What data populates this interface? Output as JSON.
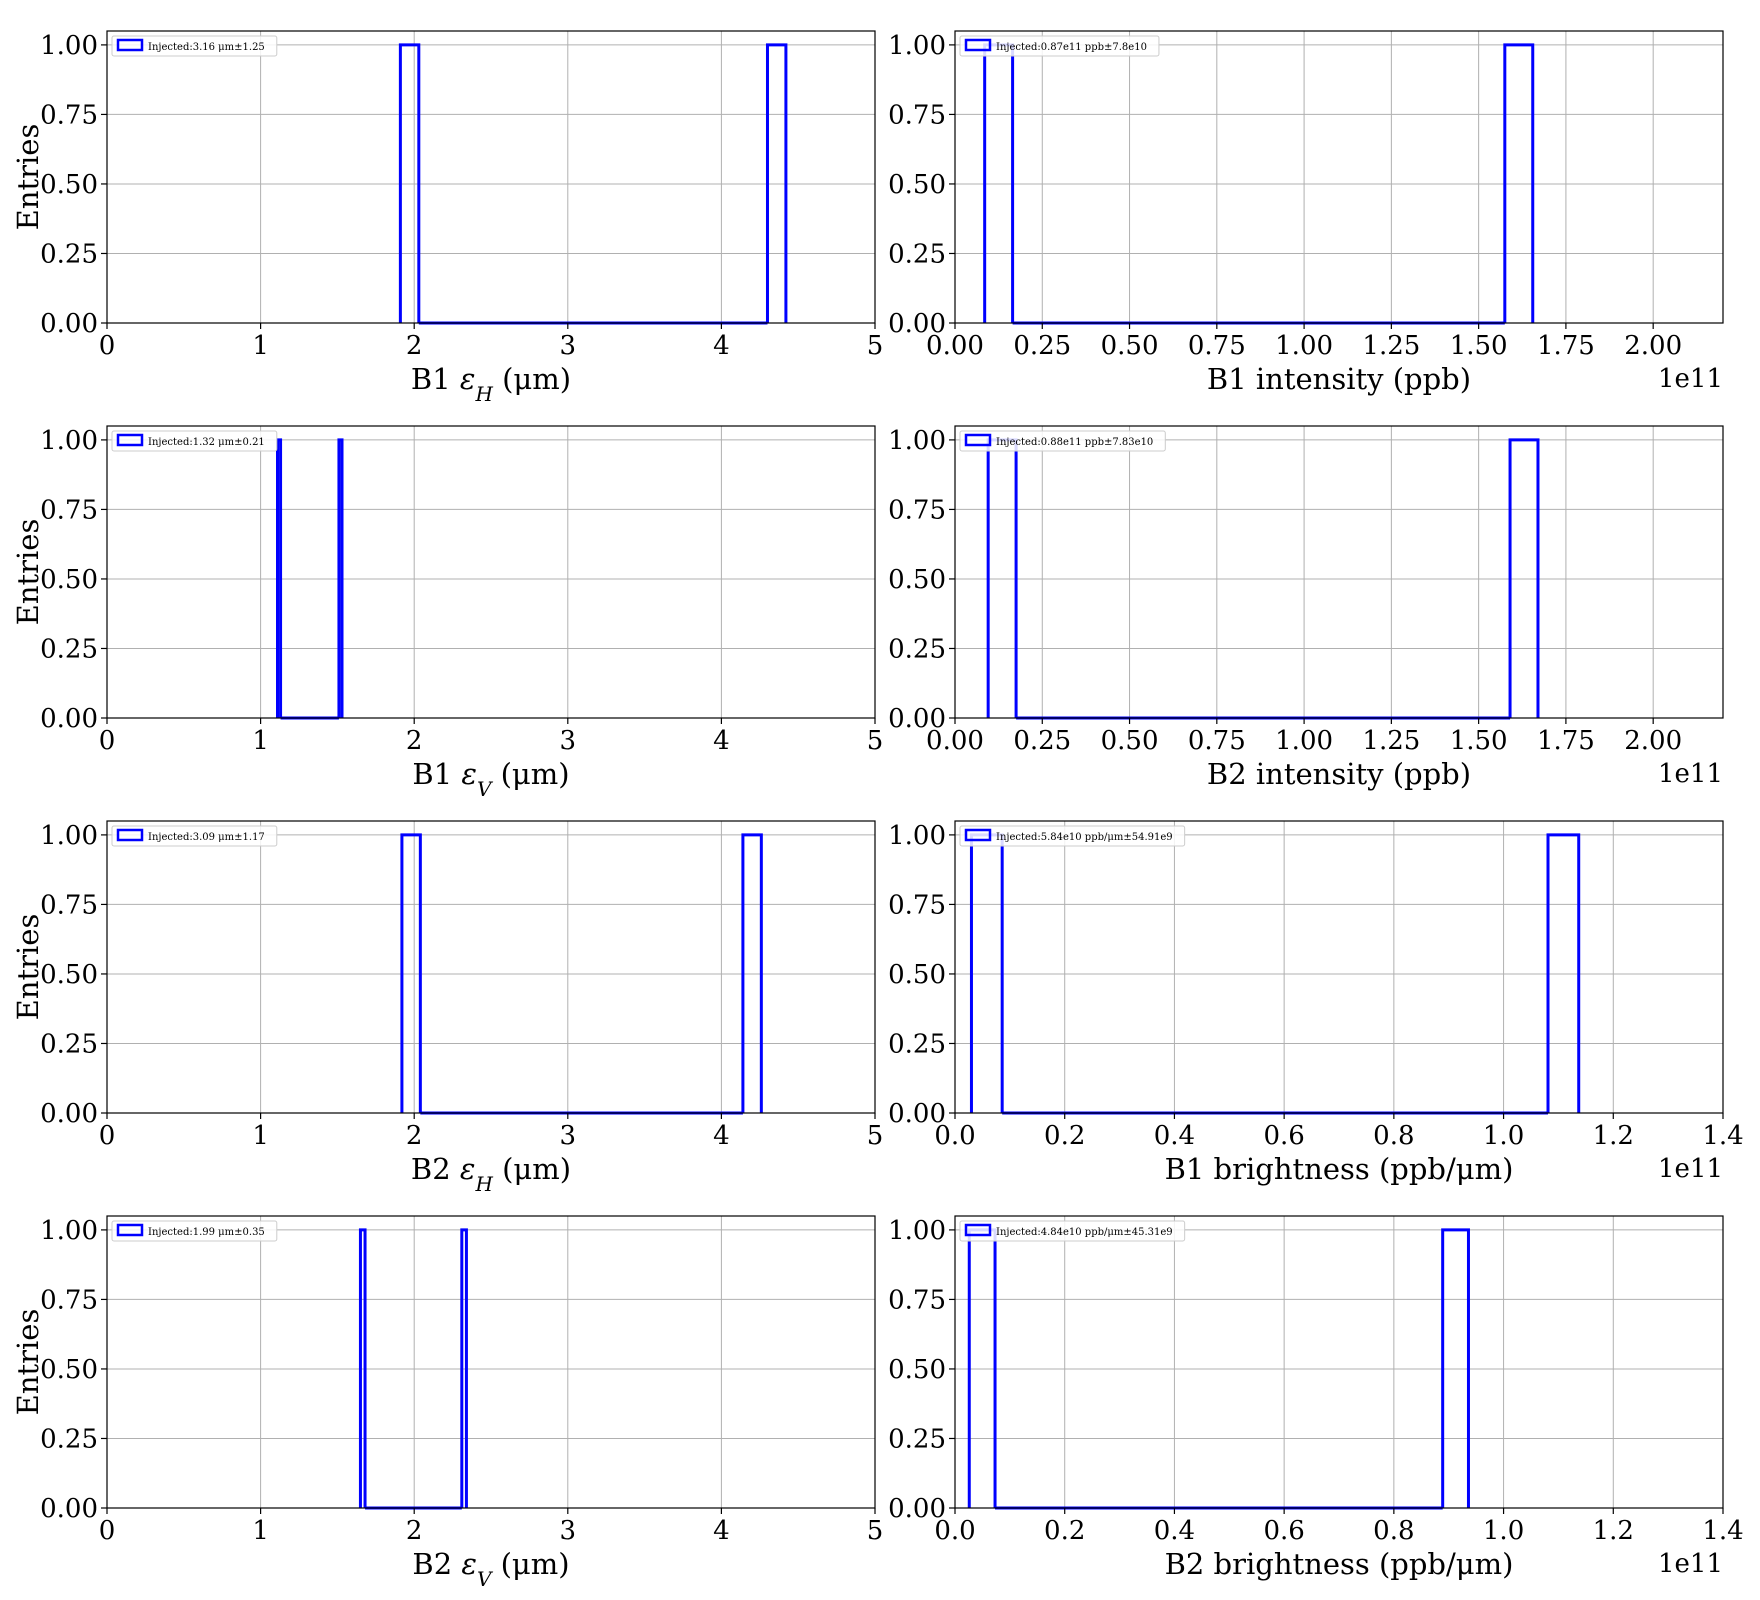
{
  "chart_data": [
    {
      "type": "bar",
      "xlabel": "B1 εH (μm)",
      "ylabel": "Entries",
      "legend": "Injected:3.16 μm±1.25",
      "legend_position": "upper-left",
      "xlim": [
        0,
        5
      ],
      "ylim": [
        0,
        1.05
      ],
      "xticks": [
        "0",
        "1",
        "2",
        "3",
        "4",
        "5"
      ],
      "x_offset": "",
      "grid": true,
      "bins": [
        {
          "x0": 1.91,
          "x1": 2.03,
          "value": 1.0
        },
        {
          "x0": 4.3,
          "x1": 4.42,
          "value": 1.0
        }
      ]
    },
    {
      "type": "bar",
      "xlabel": "B1 intensity (ppb)",
      "ylabel": "",
      "legend": "Injected:0.87e11 ppb±7.8e10",
      "legend_position": "upper-left",
      "xlim": [
        0,
        2.2
      ],
      "ylim": [
        0,
        1.05
      ],
      "xticks": [
        "0.00",
        "0.25",
        "0.50",
        "0.75",
        "1.00",
        "1.25",
        "1.50",
        "1.75",
        "2.00"
      ],
      "x_offset": "1e11",
      "grid": true,
      "bins": [
        {
          "x0": 0.085,
          "x1": 0.165,
          "value": 1.0
        },
        {
          "x0": 1.575,
          "x1": 1.655,
          "value": 1.0
        }
      ]
    },
    {
      "type": "bar",
      "xlabel": "B1 εV (μm)",
      "ylabel": "Entries",
      "legend": "Injected:1.32 μm±0.21",
      "legend_position": "upper-left",
      "xlim": [
        0,
        5
      ],
      "ylim": [
        0,
        1.05
      ],
      "xticks": [
        "0",
        "1",
        "2",
        "3",
        "4",
        "5"
      ],
      "x_offset": "",
      "grid": true,
      "bins": [
        {
          "x0": 1.11,
          "x1": 1.13,
          "value": 1.0
        },
        {
          "x0": 1.51,
          "x1": 1.53,
          "value": 1.0
        }
      ]
    },
    {
      "type": "bar",
      "xlabel": "B2 intensity (ppb)",
      "ylabel": "",
      "legend": "Injected:0.88e11 ppb±7.83e10",
      "legend_position": "upper-left",
      "xlim": [
        0,
        2.2
      ],
      "ylim": [
        0,
        1.05
      ],
      "xticks": [
        "0.00",
        "0.25",
        "0.50",
        "0.75",
        "1.00",
        "1.25",
        "1.50",
        "1.75",
        "2.00"
      ],
      "x_offset": "1e11",
      "grid": true,
      "bins": [
        {
          "x0": 0.095,
          "x1": 0.175,
          "value": 1.0
        },
        {
          "x0": 1.59,
          "x1": 1.67,
          "value": 1.0
        }
      ]
    },
    {
      "type": "bar",
      "xlabel": "B2 εH (μm)",
      "ylabel": "Entries",
      "legend": "Injected:3.09 μm±1.17",
      "legend_position": "upper-left",
      "xlim": [
        0,
        5
      ],
      "ylim": [
        0,
        1.05
      ],
      "xticks": [
        "0",
        "1",
        "2",
        "3",
        "4",
        "5"
      ],
      "x_offset": "",
      "grid": true,
      "bins": [
        {
          "x0": 1.92,
          "x1": 2.04,
          "value": 1.0
        },
        {
          "x0": 4.14,
          "x1": 4.26,
          "value": 1.0
        }
      ]
    },
    {
      "type": "bar",
      "xlabel": "B1 brightness (ppb/μm)",
      "ylabel": "",
      "legend": "Injected:5.84e10 ppb/μm±54.91e9",
      "legend_position": "upper-left",
      "xlim": [
        0,
        1.4
      ],
      "ylim": [
        0,
        1.05
      ],
      "xticks": [
        "0.0",
        "0.2",
        "0.4",
        "0.6",
        "0.8",
        "1.0",
        "1.2",
        "1.4"
      ],
      "x_offset": "1e11",
      "grid": true,
      "bins": [
        {
          "x0": 0.03,
          "x1": 0.086,
          "value": 1.0
        },
        {
          "x0": 1.081,
          "x1": 1.137,
          "value": 1.0
        }
      ]
    },
    {
      "type": "bar",
      "xlabel": "B2 εV (μm)",
      "ylabel": "Entries",
      "legend": "Injected:1.99 μm±0.35",
      "legend_position": "upper-left",
      "xlim": [
        0,
        5
      ],
      "ylim": [
        0,
        1.05
      ],
      "xticks": [
        "0",
        "1",
        "2",
        "3",
        "4",
        "5"
      ],
      "x_offset": "",
      "grid": true,
      "bins": [
        {
          "x0": 1.65,
          "x1": 1.68,
          "value": 1.0
        },
        {
          "x0": 2.31,
          "x1": 2.34,
          "value": 1.0
        }
      ]
    },
    {
      "type": "bar",
      "xlabel": "B2 brightness (ppb/μm)",
      "ylabel": "",
      "legend": "Injected:4.84e10 ppb/μm±45.31e9",
      "legend_position": "upper-left",
      "xlim": [
        0,
        1.4
      ],
      "ylim": [
        0,
        1.05
      ],
      "xticks": [
        "0.0",
        "0.2",
        "0.4",
        "0.6",
        "0.8",
        "1.0",
        "1.2",
        "1.4"
      ],
      "x_offset": "1e11",
      "grid": true,
      "bins": [
        {
          "x0": 0.026,
          "x1": 0.073,
          "value": 1.0
        },
        {
          "x0": 0.889,
          "x1": 0.936,
          "value": 1.0
        }
      ]
    }
  ],
  "y_tick_labels": [
    "0.00",
    "0.25",
    "0.50",
    "0.75",
    "1.00"
  ],
  "y_tick_values": [
    0,
    0.25,
    0.5,
    0.75,
    1.0
  ],
  "colors": {
    "series": "#0000ff",
    "grid": "#b0b0b0",
    "axis": "#000000"
  }
}
